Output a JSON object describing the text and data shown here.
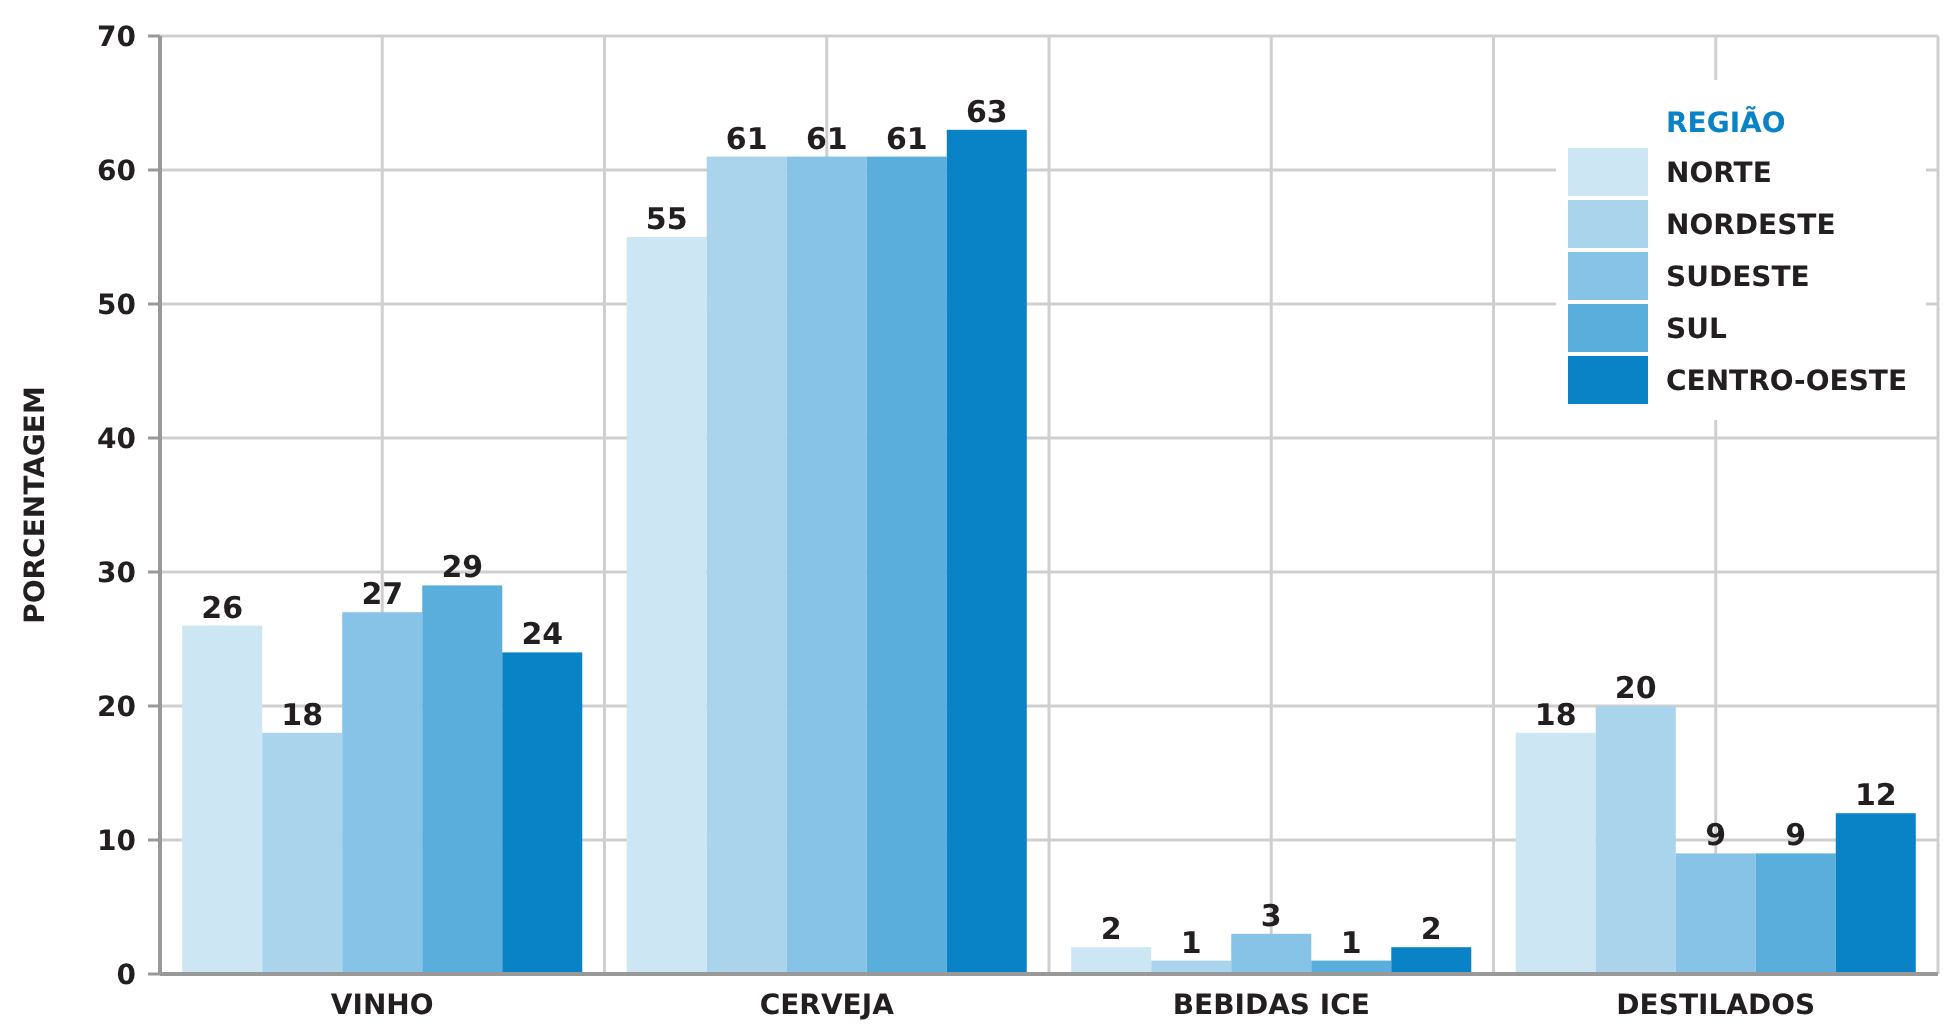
{
  "chart_data": {
    "type": "bar",
    "ylabel": "PORCENTAGEM",
    "legend_title": "REGIÃO",
    "legend": "top right",
    "grid": true,
    "data_labels": true,
    "categories": [
      "VINHO",
      "CERVEJA",
      "BEBIDAS ICE",
      "DESTILADOS"
    ],
    "ylim": [
      0,
      70
    ],
    "yticks": [
      0,
      10,
      20,
      30,
      40,
      50,
      60,
      70
    ],
    "series": [
      {
        "name": "NORTE",
        "color": "#cde6f3",
        "values": [
          26,
          55,
          2,
          18
        ]
      },
      {
        "name": "NORDESTE",
        "color": "#a9d4ec",
        "values": [
          18,
          61,
          1,
          20
        ]
      },
      {
        "name": "SUDESTE",
        "color": "#86c3e6",
        "values": [
          27,
          61,
          3,
          9
        ]
      },
      {
        "name": "SUL",
        "color": "#5aaedc",
        "values": [
          29,
          61,
          1,
          9
        ]
      },
      {
        "name": "CENTRO-OESTE",
        "color": "#0a82c6",
        "values": [
          24,
          63,
          2,
          12
        ]
      }
    ]
  }
}
